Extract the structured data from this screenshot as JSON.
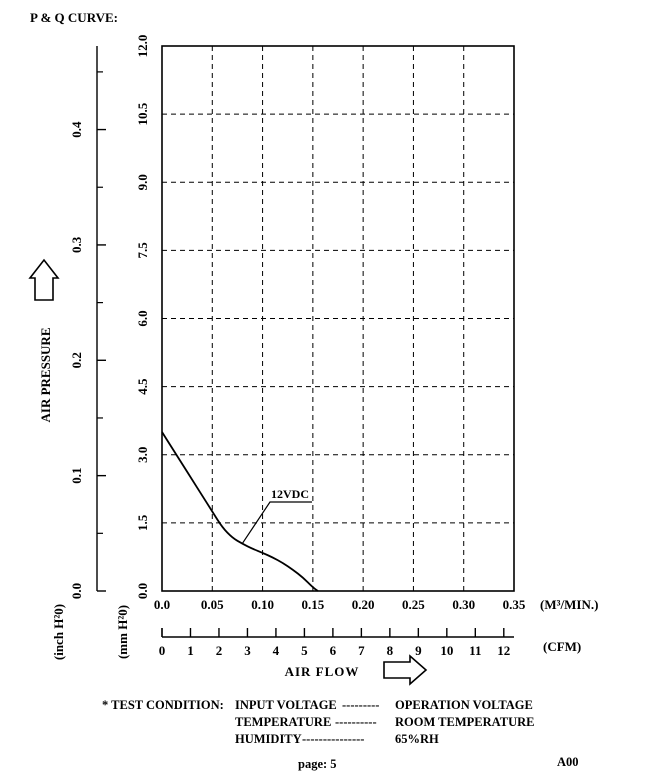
{
  "page_title": "P & Q CURVE:",
  "chart_data": {
    "type": "line",
    "x_label": "AIR FLOW",
    "y_label": "AIR PRESSURE",
    "x_unit_primary": "(M³/MIN.)",
    "x_unit_secondary": "(CFM)",
    "y_unit_mm": "(mm H²0)",
    "y_unit_inch": "(inch H²0)",
    "x_range_m3min": [
      0.0,
      0.35
    ],
    "y_range_mmh2o": [
      0.0,
      12.0
    ],
    "x_ticks_m3min": [
      "0.0",
      "0.05",
      "0.10",
      "0.15",
      "0.20",
      "0.25",
      "0.30",
      "0.35"
    ],
    "x_ticks_cfm": [
      "0",
      "1",
      "2",
      "3",
      "4",
      "5",
      "6",
      "7",
      "8",
      "9",
      "10",
      "11",
      "12"
    ],
    "y_ticks_mmh2o": [
      "0.0",
      "1.5",
      "3.0",
      "4.5",
      "6.0",
      "7.5",
      "9.0",
      "10.5",
      "12.0"
    ],
    "y_ticks_inch": [
      "0.0",
      "0.1",
      "0.2",
      "0.3",
      "0.4"
    ],
    "grid": true,
    "series": [
      {
        "name": "12VDC",
        "x": [
          0.0,
          0.01,
          0.02,
          0.03,
          0.04,
          0.05,
          0.06,
          0.07,
          0.08,
          0.09,
          0.1,
          0.11,
          0.12,
          0.13,
          0.14,
          0.15,
          0.155
        ],
        "y": [
          3.5,
          3.15,
          2.8,
          2.45,
          2.1,
          1.75,
          1.4,
          1.17,
          1.04,
          0.93,
          0.84,
          0.74,
          0.62,
          0.47,
          0.3,
          0.08,
          0.0
        ]
      }
    ]
  },
  "test_condition": {
    "prefix": "* TEST CONDITION:",
    "rows": [
      {
        "label": "INPUT VOLTAGE",
        "dashes": "---------",
        "value": "OPERATION VOLTAGE"
      },
      {
        "label": "TEMPERATURE",
        "dashes": "----------",
        "value": "ROOM TEMPERATURE"
      },
      {
        "label": "HUMIDITY",
        "dashes": "---------------",
        "value": "65%RH"
      }
    ]
  },
  "footer": {
    "page": "page: 5",
    "code": "A00"
  }
}
